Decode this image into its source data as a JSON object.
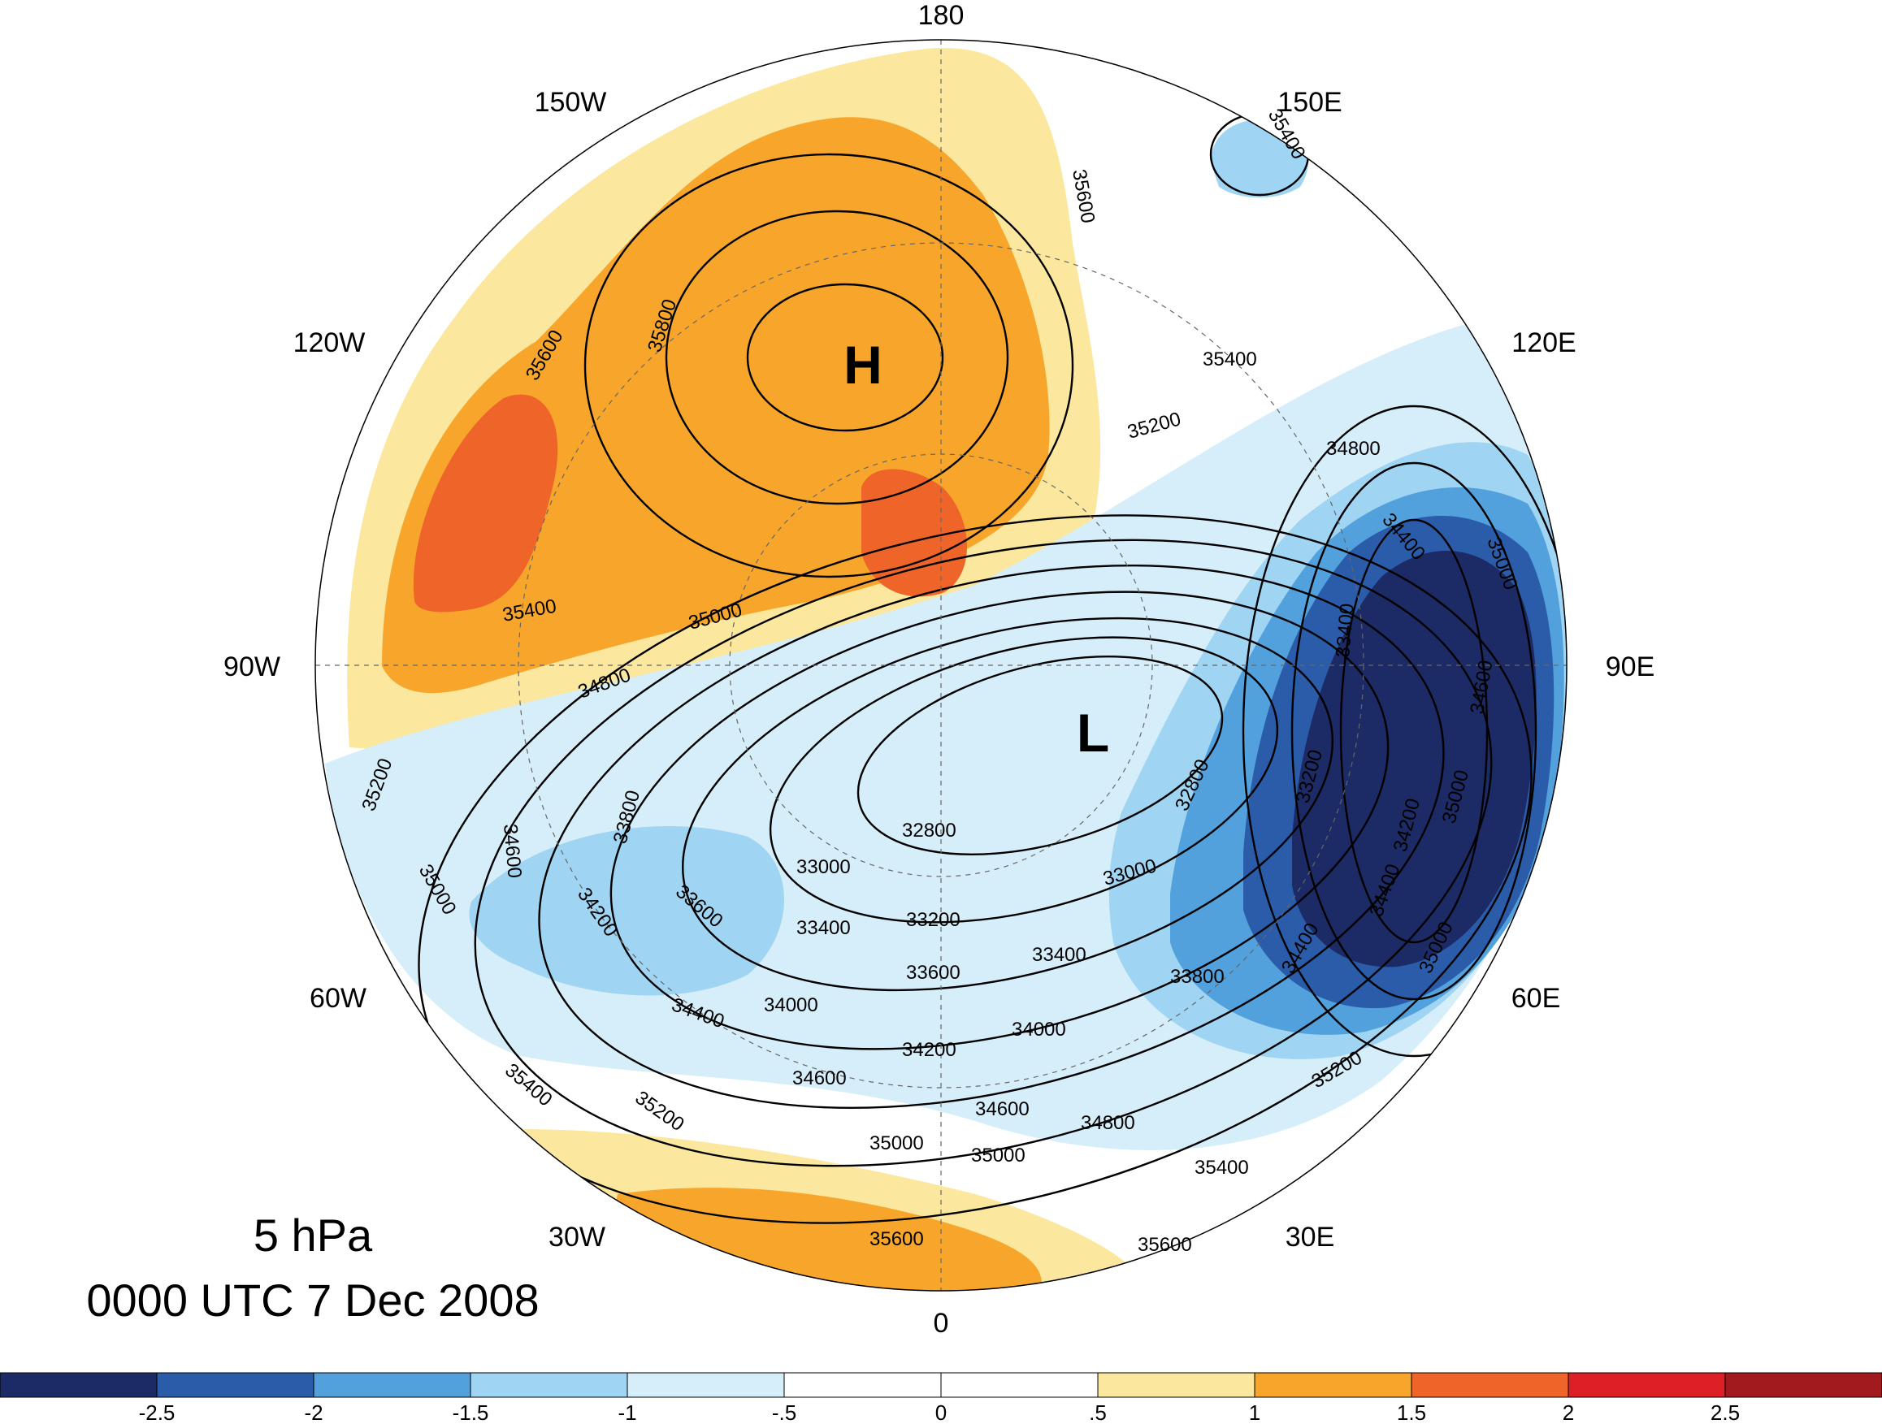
{
  "title": {
    "level": "5 hPa",
    "time": "0000 UTC 7 Dec 2008"
  },
  "longitude_labels": [
    {
      "id": "lon-180",
      "text": "180"
    },
    {
      "id": "lon-150w",
      "text": "150W"
    },
    {
      "id": "lon-150e",
      "text": "150E"
    },
    {
      "id": "lon-120w",
      "text": "120W"
    },
    {
      "id": "lon-120e",
      "text": "120E"
    },
    {
      "id": "lon-90w",
      "text": "90W"
    },
    {
      "id": "lon-90e",
      "text": "90E"
    },
    {
      "id": "lon-60w",
      "text": "60W"
    },
    {
      "id": "lon-60e",
      "text": "60E"
    },
    {
      "id": "lon-30w",
      "text": "30W"
    },
    {
      "id": "lon-30e",
      "text": "30E"
    },
    {
      "id": "lon-0",
      "text": "0"
    }
  ],
  "pressure_centers": [
    {
      "type": "high",
      "text": "H"
    },
    {
      "type": "low",
      "text": "L"
    }
  ],
  "contour_labels": [
    "35600",
    "35800",
    "35400",
    "35000",
    "34800",
    "35200",
    "35400",
    "35600",
    "35400",
    "34800",
    "34400",
    "35000",
    "33400",
    "33200",
    "34600",
    "34200",
    "35000",
    "32800",
    "32800",
    "33000",
    "33000",
    "33200",
    "33400",
    "33400",
    "33600",
    "33800",
    "33800",
    "33600",
    "34000",
    "34000",
    "34200",
    "34200",
    "34400",
    "34400",
    "34600",
    "34600",
    "34800",
    "35000",
    "35000",
    "35200",
    "35200",
    "35400",
    "35400",
    "35600",
    "35600",
    "35200",
    "35000",
    "34600",
    "34400",
    "35000"
  ],
  "colorbar": {
    "ticks": [
      "-2.5",
      "-2",
      "-1.5",
      "-1",
      "-.5",
      "0",
      ".5",
      "1",
      "1.5",
      "2",
      "2.5"
    ],
    "colors": [
      "#1c2b65",
      "#2a5caa",
      "#52a0dc",
      "#9fd4f2",
      "#d6eefa",
      "#ffffff",
      "#ffffff",
      "#fbe79d",
      "#f7a62b",
      "#ef6429",
      "#dd1f26",
      "#a11a1e"
    ]
  }
}
